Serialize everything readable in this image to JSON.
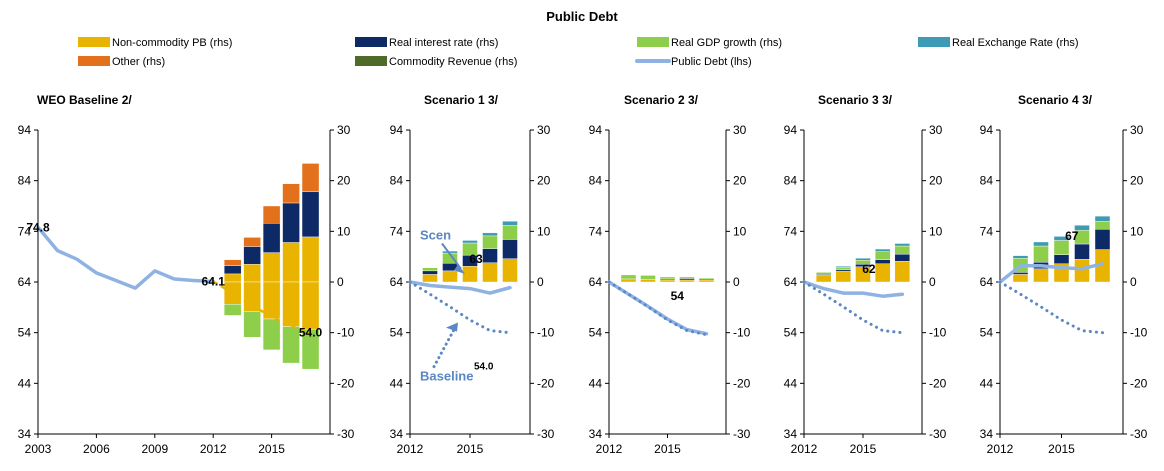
{
  "chart_data": {
    "title": "Public Debt",
    "type": "bar",
    "legend": {
      "placement": "top",
      "items": [
        {
          "key": "ncpb",
          "label": "Non-commodity PB (rhs)",
          "kind": "bar",
          "color": "#E8B400"
        },
        {
          "key": "rir",
          "label": "Real interest rate (rhs)",
          "kind": "bar",
          "color": "#0D2A66"
        },
        {
          "key": "gdp",
          "label": "Real GDP growth (rhs)",
          "kind": "bar",
          "color": "#8DCF4A"
        },
        {
          "key": "rer",
          "label": "Real Exchange Rate (rhs)",
          "kind": "bar",
          "color": "#3D9BB5"
        },
        {
          "key": "oth",
          "label": "Other (rhs)",
          "kind": "bar",
          "color": "#E3701B"
        },
        {
          "key": "cr",
          "label": "Commodity Revenue (rhs)",
          "kind": "bar",
          "color": "#4F6B2A"
        },
        {
          "key": "debt",
          "label": "Public Debt (lhs)",
          "kind": "line",
          "color": "#8EB3E3"
        }
      ]
    },
    "y_left": {
      "min": 34,
      "max": 94,
      "ticks": [
        "94",
        "84",
        "74",
        "64",
        "54",
        "44",
        "34"
      ]
    },
    "y_right": {
      "min": -30,
      "max": 30,
      "ticks": [
        "30",
        "20",
        "10",
        "0",
        "-10",
        "-20",
        "-30"
      ]
    },
    "panels": [
      {
        "title": "WEO Baseline 2/",
        "x_range": [
          2003,
          2018
        ],
        "x_ticks": [
          "2003",
          "2006",
          "2009",
          "2012",
          "2015"
        ],
        "bars": [
          {
            "x": 2013,
            "pos": [
              [
                "ncpb",
                1.6
              ],
              [
                "rir",
                1.6
              ],
              [
                "oth",
                1.2
              ]
            ],
            "neg": [
              [
                "ncpb",
                -4.4
              ],
              [
                "gdp",
                -2.2
              ]
            ]
          },
          {
            "x": 2014,
            "pos": [
              [
                "ncpb",
                3.5
              ],
              [
                "rir",
                3.5
              ],
              [
                "oth",
                1.8
              ]
            ],
            "neg": [
              [
                "ncpb",
                -5.8
              ],
              [
                "gdp",
                -5.1
              ]
            ]
          },
          {
            "x": 2015,
            "pos": [
              [
                "ncpb",
                5.8
              ],
              [
                "rir",
                5.8
              ],
              [
                "oth",
                3.4
              ]
            ],
            "neg": [
              [
                "ncpb",
                -7.3
              ],
              [
                "gdp",
                -6.1
              ]
            ]
          },
          {
            "x": 2016,
            "pos": [
              [
                "ncpb",
                7.8
              ],
              [
                "rir",
                7.8
              ],
              [
                "oth",
                3.8
              ]
            ],
            "neg": [
              [
                "ncpb",
                -8.8
              ],
              [
                "gdp",
                -7.2
              ]
            ]
          },
          {
            "x": 2017,
            "pos": [
              [
                "ncpb",
                8.9
              ],
              [
                "rir",
                8.9
              ],
              [
                "oth",
                5.6
              ]
            ],
            "neg": [
              [
                "ncpb",
                -9.3
              ],
              [
                "gdp",
                -7.9
              ]
            ]
          }
        ],
        "series": [
          {
            "key": "debt",
            "style": "solid",
            "x": [
              2003,
              2004,
              2005,
              2006,
              2007,
              2008,
              2009,
              2010,
              2011,
              2012
            ],
            "y": [
              74.8,
              70.2,
              68.5,
              65.8,
              64.3,
              62.8,
              66.2,
              64.6,
              64.3,
              64.1
            ]
          },
          {
            "key": "debt",
            "style": "dashed",
            "color": "#E8B400",
            "x": [
              2012,
              2013,
              2014,
              2015,
              2016,
              2017
            ],
            "y": [
              64.1,
              61.8,
              59.4,
              57.1,
              55.3,
              54.0
            ]
          }
        ],
        "labels": [
          {
            "text": "74.8",
            "x": 2003,
            "y": 74.8
          },
          {
            "text": "64.1",
            "x": 2012,
            "y": 64.1
          },
          {
            "text": "54.0",
            "x": 2017,
            "y": 54.0
          }
        ]
      },
      {
        "title": "Scenario 1 3/",
        "x_range": [
          2012,
          2018
        ],
        "x_ticks": [
          "2012",
          "2015"
        ],
        "bars": [
          {
            "x": 2013,
            "pos": [
              [
                "ncpb",
                1.5
              ],
              [
                "rir",
                0.7
              ],
              [
                "gdp",
                0.6
              ]
            ],
            "neg": []
          },
          {
            "x": 2014,
            "pos": [
              [
                "ncpb",
                2.2
              ],
              [
                "rir",
                1.5
              ],
              [
                "gdp",
                2.0
              ],
              [
                "rer",
                0.4
              ]
            ],
            "neg": []
          },
          {
            "x": 2015,
            "pos": [
              [
                "ncpb",
                3.1
              ],
              [
                "rir",
                2.2
              ],
              [
                "gdp",
                2.4
              ],
              [
                "rer",
                0.5
              ]
            ],
            "neg": []
          },
          {
            "x": 2016,
            "pos": [
              [
                "ncpb",
                3.8
              ],
              [
                "rir",
                2.8
              ],
              [
                "gdp",
                2.5
              ],
              [
                "rer",
                0.6
              ]
            ],
            "neg": []
          },
          {
            "x": 2017,
            "pos": [
              [
                "ncpb",
                4.6
              ],
              [
                "rir",
                3.8
              ],
              [
                "gdp",
                2.8
              ],
              [
                "rer",
                0.8
              ]
            ],
            "neg": []
          }
        ],
        "series": [
          {
            "key": "debt",
            "style": "solid",
            "x": [
              2012,
              2013,
              2014,
              2015,
              2016,
              2017
            ],
            "y": [
              64.0,
              63.3,
              63.0,
              62.7,
              61.8,
              62.9
            ]
          },
          {
            "key": "debt",
            "style": "dotted",
            "x": [
              2012,
              2013,
              2014,
              2015,
              2016,
              2017
            ],
            "y": [
              64.0,
              61.6,
              59.1,
              56.5,
              54.4,
              54.0
            ]
          }
        ],
        "labels": [
          {
            "text": "63",
            "x": 2015.3,
            "y": 68.5
          }
        ],
        "annotations": [
          {
            "text": "Scen",
            "x": 2012.5,
            "y": 73.2
          },
          {
            "text": "Baseline",
            "x": 2012.5,
            "y": 45.3
          },
          {
            "text": "54.0",
            "x": 2015.2,
            "y": 47.5,
            "small": true
          }
        ]
      },
      {
        "title": "Scenario 2 3/",
        "x_range": [
          2012,
          2018
        ],
        "x_ticks": [
          "2012",
          "2015"
        ],
        "bars": [
          {
            "x": 2013,
            "pos": [
              [
                "ncpb",
                0.6
              ],
              [
                "gdp",
                0.8
              ]
            ],
            "neg": []
          },
          {
            "x": 2014,
            "pos": [
              [
                "ncpb",
                0.5
              ],
              [
                "gdp",
                0.8
              ]
            ],
            "neg": []
          },
          {
            "x": 2015,
            "pos": [
              [
                "ncpb",
                0.4
              ],
              [
                "rir",
                0.2
              ],
              [
                "gdp",
                0.4
              ]
            ],
            "neg": []
          },
          {
            "x": 2016,
            "pos": [
              [
                "ncpb",
                0.4
              ],
              [
                "rir",
                0.3
              ],
              [
                "gdp",
                0.3
              ]
            ],
            "neg": []
          },
          {
            "x": 2017,
            "pos": [
              [
                "ncpb",
                0.4
              ],
              [
                "rir",
                0.2
              ],
              [
                "gdp",
                0.2
              ]
            ],
            "neg": []
          }
        ],
        "series": [
          {
            "key": "debt",
            "style": "solid",
            "x": [
              2012,
              2013,
              2014,
              2015,
              2016,
              2017
            ],
            "y": [
              64.0,
              61.6,
              59.2,
              56.7,
              54.6,
              53.8
            ]
          },
          {
            "key": "debt",
            "style": "dotted",
            "x": [
              2012,
              2013,
              2014,
              2015,
              2016,
              2017
            ],
            "y": [
              64.0,
              61.6,
              59.1,
              56.5,
              54.4,
              53.6
            ]
          }
        ],
        "labels": [
          {
            "text": "54",
            "x": 2015.5,
            "y": 61.2
          }
        ]
      },
      {
        "title": "Scenario 3 3/",
        "x_range": [
          2012,
          2018
        ],
        "x_ticks": [
          "2012",
          "2015"
        ],
        "bars": [
          {
            "x": 2013,
            "pos": [
              [
                "ncpb",
                1.3
              ],
              [
                "rir",
                0.2
              ],
              [
                "gdp",
                0.4
              ]
            ],
            "neg": []
          },
          {
            "x": 2014,
            "pos": [
              [
                "ncpb",
                2.1
              ],
              [
                "rir",
                0.3
              ],
              [
                "gdp",
                0.5
              ],
              [
                "rer",
                0.2
              ]
            ],
            "neg": []
          },
          {
            "x": 2015,
            "pos": [
              [
                "ncpb",
                3.0
              ],
              [
                "rir",
                0.5
              ],
              [
                "gdp",
                0.8
              ],
              [
                "rer",
                0.4
              ]
            ],
            "neg": []
          },
          {
            "x": 2016,
            "pos": [
              [
                "ncpb",
                3.6
              ],
              [
                "rir",
                0.8
              ],
              [
                "gdp",
                1.6
              ],
              [
                "rer",
                0.5
              ]
            ],
            "neg": []
          },
          {
            "x": 2017,
            "pos": [
              [
                "ncpb",
                4.1
              ],
              [
                "rir",
                1.4
              ],
              [
                "gdp",
                1.6
              ],
              [
                "rer",
                0.5
              ]
            ],
            "neg": []
          }
        ],
        "series": [
          {
            "key": "debt",
            "style": "solid",
            "x": [
              2012,
              2013,
              2014,
              2015,
              2016,
              2017
            ],
            "y": [
              64.0,
              62.7,
              61.8,
              61.8,
              61.2,
              61.6
            ]
          },
          {
            "key": "debt",
            "style": "dotted",
            "x": [
              2012,
              2013,
              2014,
              2015,
              2016,
              2017
            ],
            "y": [
              64.0,
              61.6,
              59.1,
              56.5,
              54.4,
              54.0
            ]
          }
        ],
        "labels": [
          {
            "text": "62",
            "x": 2015.3,
            "y": 66.6
          }
        ]
      },
      {
        "title": "Scenario 4 3/",
        "x_range": [
          2012,
          2018
        ],
        "x_ticks": [
          "2012",
          "2015"
        ],
        "bars": [
          {
            "x": 2013,
            "pos": [
              [
                "ncpb",
                1.5
              ],
              [
                "rir",
                0.4
              ],
              [
                "gdp",
                2.8
              ],
              [
                "rer",
                0.5
              ]
            ],
            "neg": []
          },
          {
            "x": 2014,
            "pos": [
              [
                "ncpb",
                2.6
              ],
              [
                "rir",
                1.3
              ],
              [
                "gdp",
                3.2
              ],
              [
                "rer",
                0.8
              ]
            ],
            "neg": []
          },
          {
            "x": 2015,
            "pos": [
              [
                "ncpb",
                3.6
              ],
              [
                "rir",
                1.8
              ],
              [
                "gdp",
                2.8
              ],
              [
                "rer",
                0.8
              ]
            ],
            "neg": []
          },
          {
            "x": 2016,
            "pos": [
              [
                "ncpb",
                4.5
              ],
              [
                "rir",
                3.0
              ],
              [
                "gdp",
                2.7
              ],
              [
                "rer",
                1.0
              ]
            ],
            "neg": []
          },
          {
            "x": 2017,
            "pos": [
              [
                "ncpb",
                6.4
              ],
              [
                "rir",
                4.0
              ],
              [
                "gdp",
                1.6
              ],
              [
                "rer",
                1.0
              ]
            ],
            "neg": []
          }
        ],
        "series": [
          {
            "key": "debt",
            "style": "solid",
            "x": [
              2012,
              2013,
              2014,
              2015,
              2016,
              2017
            ],
            "y": [
              64.0,
              67.2,
              67.2,
              66.8,
              66.6,
              67.6
            ]
          },
          {
            "key": "debt",
            "style": "dotted",
            "x": [
              2012,
              2013,
              2014,
              2015,
              2016,
              2017
            ],
            "y": [
              64.0,
              61.6,
              59.1,
              56.5,
              54.4,
              54.0
            ]
          }
        ],
        "labels": [
          {
            "text": "67",
            "x": 2015.5,
            "y": 73.1
          }
        ]
      }
    ]
  }
}
